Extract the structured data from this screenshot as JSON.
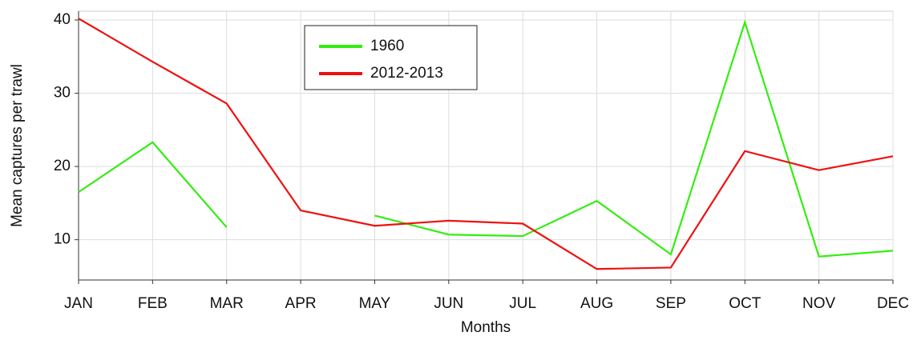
{
  "chart_data": {
    "type": "line",
    "xlabel": "Months",
    "ylabel": "Mean captures per trawl",
    "categories": [
      "JAN",
      "FEB",
      "MAR",
      "APR",
      "MAY",
      "JUN",
      "JUL",
      "AUG",
      "SEP",
      "OCT",
      "NOV",
      "DEC"
    ],
    "series": [
      {
        "name": "1960",
        "color": "#33ee11",
        "values": [
          16.5,
          23.3,
          11.7,
          null,
          13.3,
          10.7,
          10.5,
          15.3,
          8.0,
          39.7,
          7.7,
          8.5
        ]
      },
      {
        "name": "2012-2013",
        "color": "#ee1111",
        "values": [
          40.2,
          34.3,
          28.6,
          14.0,
          11.9,
          12.6,
          12.2,
          6.0,
          6.2,
          22.1,
          19.5,
          21.4
        ]
      }
    ],
    "ylim": [
      4.5,
      41.2
    ],
    "yticks": [
      10,
      20,
      30,
      40
    ],
    "grid": true,
    "legend": "top"
  }
}
